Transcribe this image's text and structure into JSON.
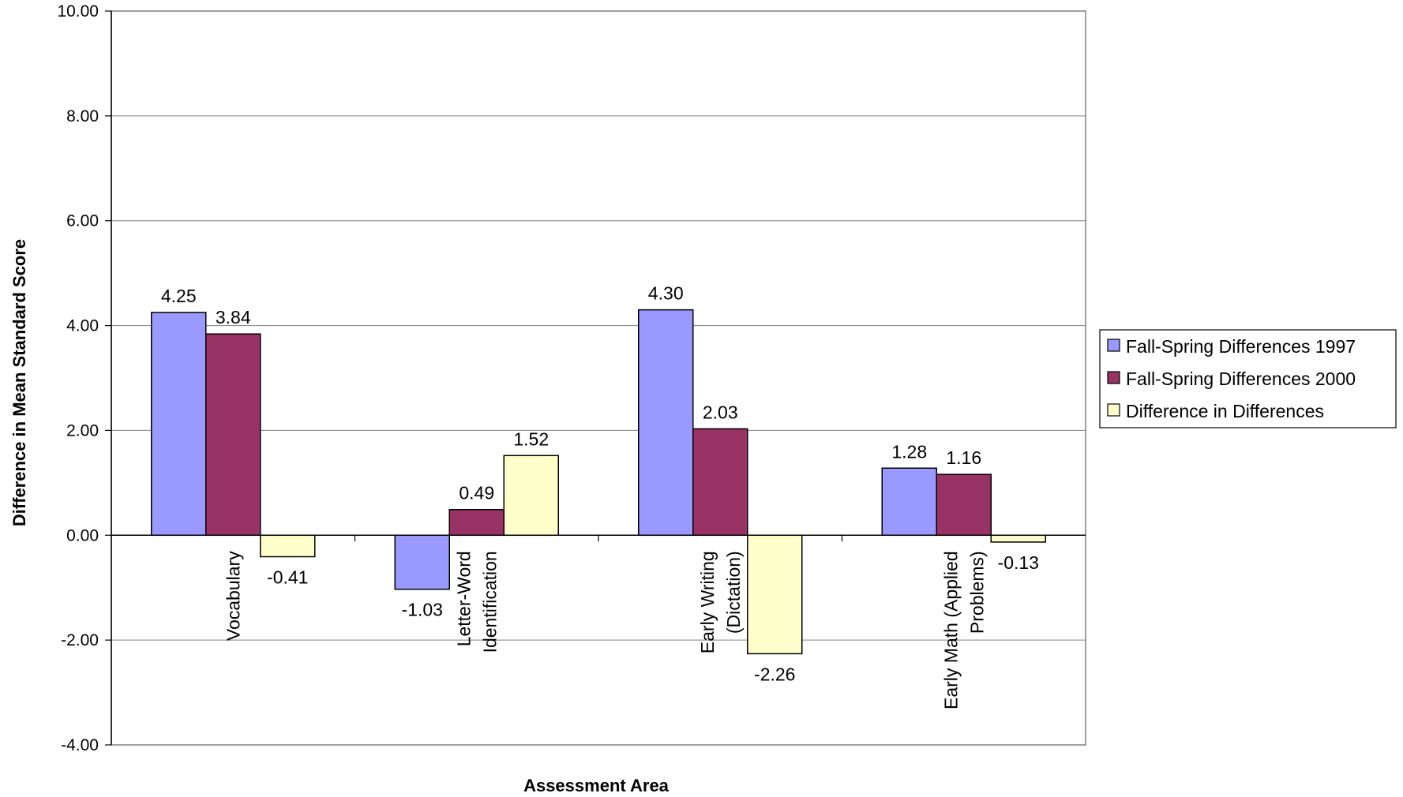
{
  "chart_data": {
    "type": "bar",
    "title": "",
    "xlabel": "Assessment Area",
    "ylabel": "Difference in Mean Standard Score",
    "ylim": [
      -4,
      10
    ],
    "ytick_step": 2,
    "ytick_labels": [
      "-4.00",
      "-2.00",
      "0.00",
      "2.00",
      "4.00",
      "6.00",
      "8.00",
      "10.00"
    ],
    "grid": true,
    "legend_position": "right",
    "categories": [
      [
        "Vocabulary"
      ],
      [
        "Letter-Word",
        "Identification"
      ],
      [
        "Early Writing",
        "(Dictation)"
      ],
      [
        "Early Math (Applied",
        "Problems)"
      ]
    ],
    "series": [
      {
        "name": "Fall-Spring Differences 1997",
        "color": "#9999ff",
        "values": [
          4.25,
          -1.03,
          4.3,
          1.28
        ],
        "labels": [
          "4.25",
          "-1.03",
          "4.30",
          "1.28"
        ]
      },
      {
        "name": "Fall-Spring Differences 2000",
        "color": "#993366",
        "values": [
          3.84,
          0.49,
          2.03,
          1.16
        ],
        "labels": [
          "3.84",
          "0.49",
          "2.03",
          "1.16"
        ]
      },
      {
        "name": "Difference in Differences",
        "color": "#ffffcc",
        "values": [
          -0.41,
          1.52,
          -2.26,
          -0.13
        ],
        "labels": [
          "-0.41",
          "1.52",
          "-2.26",
          "-0.13"
        ]
      }
    ]
  }
}
